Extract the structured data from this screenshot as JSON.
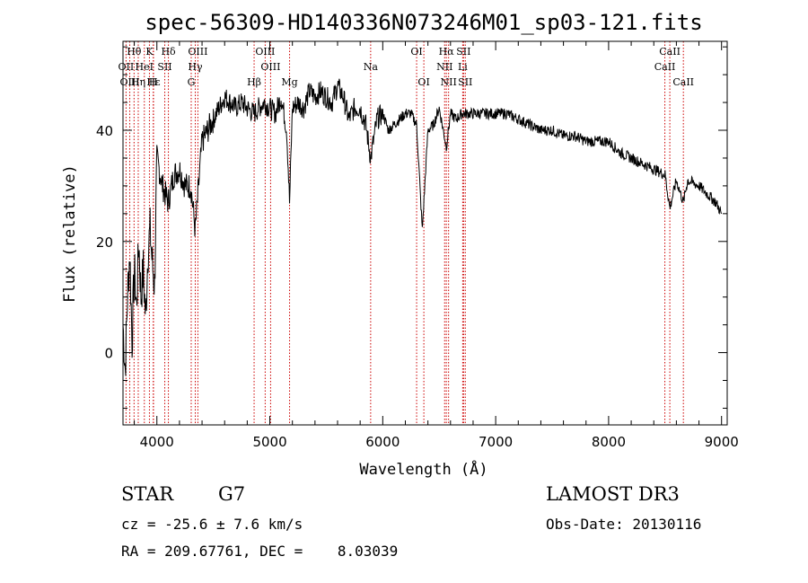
{
  "chart_data": {
    "type": "line",
    "title": "spec-56309-HD140336N073246M01_sp03-121.fits",
    "xlabel": "Wavelength (Å)",
    "ylabel": "Flux (relative)",
    "xlim": [
      3700,
      9050
    ],
    "ylim": [
      -13,
      56
    ],
    "xticks": [
      4000,
      5000,
      6000,
      7000,
      8000,
      9000
    ],
    "yticks": [
      0,
      20,
      40
    ],
    "grid": false,
    "line_color": "#000000",
    "marker_color": "#cc0000",
    "series": [
      {
        "x": [
          3700,
          3720,
          3740,
          3760,
          3780,
          3800,
          3820,
          3840,
          3860,
          3880,
          3900,
          3920,
          3940,
          3960,
          3980,
          4000,
          4050,
          4100,
          4150,
          4200,
          4250,
          4300,
          4340,
          4400,
          4450,
          4500,
          4550,
          4600,
          4650,
          4700,
          4750,
          4800,
          4861,
          4900,
          4950,
          5000,
          5050,
          5100,
          5150,
          5175,
          5200,
          5250,
          5300,
          5350,
          5400,
          5450,
          5500,
          5550,
          5600,
          5650,
          5700,
          5750,
          5800,
          5850,
          5893,
          5950,
          6000,
          6050,
          6100,
          6150,
          6200,
          6250,
          6300,
          6350,
          6400,
          6450,
          6500,
          6563,
          6600,
          6650,
          6700,
          6750,
          6800,
          6900,
          7000,
          7100,
          7200,
          7300,
          7400,
          7500,
          7600,
          7700,
          7800,
          7900,
          8000,
          8100,
          8200,
          8300,
          8400,
          8500,
          8542,
          8600,
          8662,
          8700,
          8800,
          8900,
          8950,
          9000
        ],
        "y": [
          5,
          -3,
          10,
          18,
          2,
          15,
          8,
          20,
          10,
          15,
          6,
          18,
          22,
          16,
          12,
          35,
          30,
          27,
          32,
          33,
          30,
          30,
          22,
          38,
          40,
          42,
          44,
          46,
          45,
          44,
          45,
          44,
          43,
          44,
          45,
          44,
          43,
          46,
          40,
          27,
          44,
          45,
          44,
          47,
          46,
          47,
          46,
          45,
          48,
          46,
          42,
          44,
          44,
          41,
          35,
          42,
          43,
          40,
          41,
          42,
          43,
          43,
          41,
          22,
          40,
          41,
          44,
          37,
          43,
          42,
          43,
          43,
          43,
          43,
          43,
          43,
          42,
          41,
          40,
          40,
          39,
          39,
          38,
          38,
          38,
          36,
          35,
          34,
          33,
          32,
          26,
          31,
          27,
          31,
          30,
          28,
          27,
          25
        ]
      }
    ],
    "lines": [
      {
        "name": "Hθ",
        "x": 3798
      },
      {
        "name": "OII",
        "x": 3727
      },
      {
        "name": "OIII",
        "x": 3760
      },
      {
        "name": "K",
        "x": 3934
      },
      {
        "name": "H",
        "x": 3968
      },
      {
        "name": "Hε",
        "x": 3970
      },
      {
        "name": "Hη",
        "x": 3835
      },
      {
        "name": "HeI",
        "x": 3889
      },
      {
        "name": "SII",
        "x": 4070
      },
      {
        "name": "Hδ",
        "x": 4102
      },
      {
        "name": "G",
        "x": 4304
      },
      {
        "name": "Hγ",
        "x": 4340
      },
      {
        "name": "OIII",
        "x": 4363
      },
      {
        "name": "Hβ",
        "x": 4861
      },
      {
        "name": "OIII",
        "x": 4959
      },
      {
        "name": "OIII",
        "x": 5007
      },
      {
        "name": "Mg",
        "x": 5175
      },
      {
        "name": "Na",
        "x": 5893
      },
      {
        "name": "OI",
        "x": 6300
      },
      {
        "name": "OI",
        "x": 6364
      },
      {
        "name": "NII",
        "x": 6548
      },
      {
        "name": "Hα",
        "x": 6563
      },
      {
        "name": "NII",
        "x": 6583
      },
      {
        "name": "Li",
        "x": 6708
      },
      {
        "name": "SII",
        "x": 6716
      },
      {
        "name": "SII",
        "x": 6731
      },
      {
        "name": "CaII",
        "x": 8498
      },
      {
        "name": "CaII",
        "x": 8542
      },
      {
        "name": "CaII",
        "x": 8662
      }
    ]
  },
  "footer": {
    "object_type": "STAR",
    "subclass": "G7",
    "survey": "LAMOST DR3",
    "redshift": "cz = -25.6 ± 7.6 km/s",
    "obs_date": "Obs-Date: 20130116",
    "coords": "RA = 209.67761, DEC =    8.03039"
  }
}
